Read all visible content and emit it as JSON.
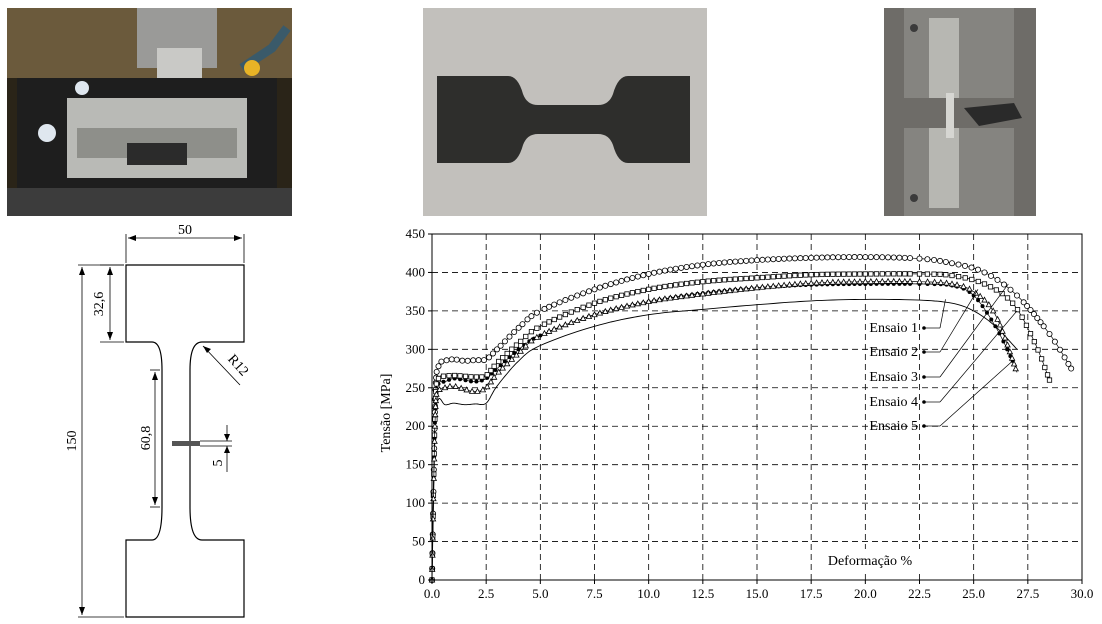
{
  "photos": {
    "cnc": {
      "subject": "milling-machine-vise"
    },
    "specimen": {
      "subject": "dogbone-steel-specimen"
    },
    "machine": {
      "subject": "tensile-test-grips"
    }
  },
  "drawing": {
    "dims": {
      "top_width": "50",
      "head_height": "32,6",
      "radius": "R12",
      "total_height": "150",
      "gauge_length": "60,8",
      "thickness": "5"
    }
  },
  "chart_data": {
    "type": "line",
    "title": "",
    "xlabel": "Deformação %",
    "ylabel": "Tensão [MPa]",
    "xlim": [
      0,
      30
    ],
    "ylim": [
      0,
      450
    ],
    "xticks": [
      "0.0",
      "2.5",
      "5.0",
      "7.5",
      "10.0",
      "12.5",
      "15.0",
      "17.5",
      "20.0",
      "22.5",
      "25.0",
      "27.5",
      "30.0"
    ],
    "yticks": [
      "0",
      "50",
      "100",
      "150",
      "200",
      "250",
      "300",
      "350",
      "400",
      "450"
    ],
    "grid": true,
    "legend_placement": "right-inside with leader lines",
    "series": [
      {
        "name": "Ensaio 1",
        "marker": "line",
        "x": [
          0,
          0.15,
          0.3,
          0.6,
          1.0,
          1.5,
          2.0,
          2.5,
          3.0,
          4.0,
          5.0,
          7.5,
          10.0,
          12.5,
          15.0,
          17.5,
          20.0,
          22.5,
          24.0,
          25.0,
          26.0,
          27.0
        ],
        "y": [
          0,
          200,
          235,
          228,
          230,
          228,
          229,
          230,
          252,
          285,
          305,
          330,
          345,
          352,
          358,
          363,
          365,
          364,
          360,
          350,
          330,
          300
        ]
      },
      {
        "name": "Ensaio 2",
        "marker": "filled-circle",
        "x": [
          0,
          0.15,
          0.3,
          0.6,
          1.0,
          1.5,
          2.0,
          2.5,
          3.0,
          4.0,
          5.0,
          7.5,
          10.0,
          12.5,
          15.0,
          17.5,
          20.0,
          22.5,
          24.0,
          25.0,
          26.0,
          26.8
        ],
        "y": [
          0,
          220,
          255,
          258,
          262,
          260,
          258,
          262,
          275,
          300,
          318,
          345,
          362,
          373,
          380,
          384,
          385,
          385,
          383,
          370,
          330,
          285
        ]
      },
      {
        "name": "Ensaio 3",
        "marker": "open-circle",
        "x": [
          0,
          0.15,
          0.3,
          0.6,
          1.0,
          1.5,
          2.0,
          2.5,
          3.0,
          4.0,
          5.0,
          7.5,
          10.0,
          12.5,
          15.0,
          17.5,
          20.0,
          22.5,
          24.0,
          25.5,
          27.0,
          28.5,
          29.5
        ],
        "y": [
          0,
          235,
          278,
          285,
          287,
          285,
          286,
          287,
          300,
          328,
          350,
          378,
          398,
          410,
          416,
          419,
          420,
          418,
          412,
          400,
          370,
          320,
          275
        ]
      },
      {
        "name": "Ensaio 4",
        "marker": "open-square",
        "x": [
          0,
          0.15,
          0.3,
          0.6,
          1.0,
          1.5,
          2.0,
          2.5,
          3.0,
          4.0,
          5.0,
          7.5,
          10.0,
          12.5,
          15.0,
          17.5,
          20.0,
          22.5,
          24.0,
          25.5,
          26.8,
          27.8,
          28.5
        ],
        "y": [
          0,
          225,
          262,
          265,
          266,
          265,
          264,
          266,
          282,
          308,
          330,
          360,
          378,
          388,
          393,
          397,
          398,
          398,
          396,
          385,
          360,
          310,
          260
        ]
      },
      {
        "name": "Ensaio 5",
        "marker": "open-triangle",
        "x": [
          0,
          0.15,
          0.3,
          0.6,
          1.0,
          1.5,
          2.0,
          2.5,
          3.0,
          4.0,
          5.0,
          7.5,
          10.0,
          12.5,
          15.0,
          17.5,
          20.0,
          22.5,
          24.0,
          25.0,
          26.0,
          27.0
        ],
        "y": [
          0,
          215,
          245,
          250,
          252,
          248,
          245,
          250,
          268,
          295,
          318,
          345,
          362,
          372,
          380,
          386,
          388,
          388,
          385,
          375,
          345,
          270
        ]
      }
    ]
  },
  "colors": {
    "line": "#000000",
    "grid": "#000000",
    "background": "#ffffff"
  }
}
